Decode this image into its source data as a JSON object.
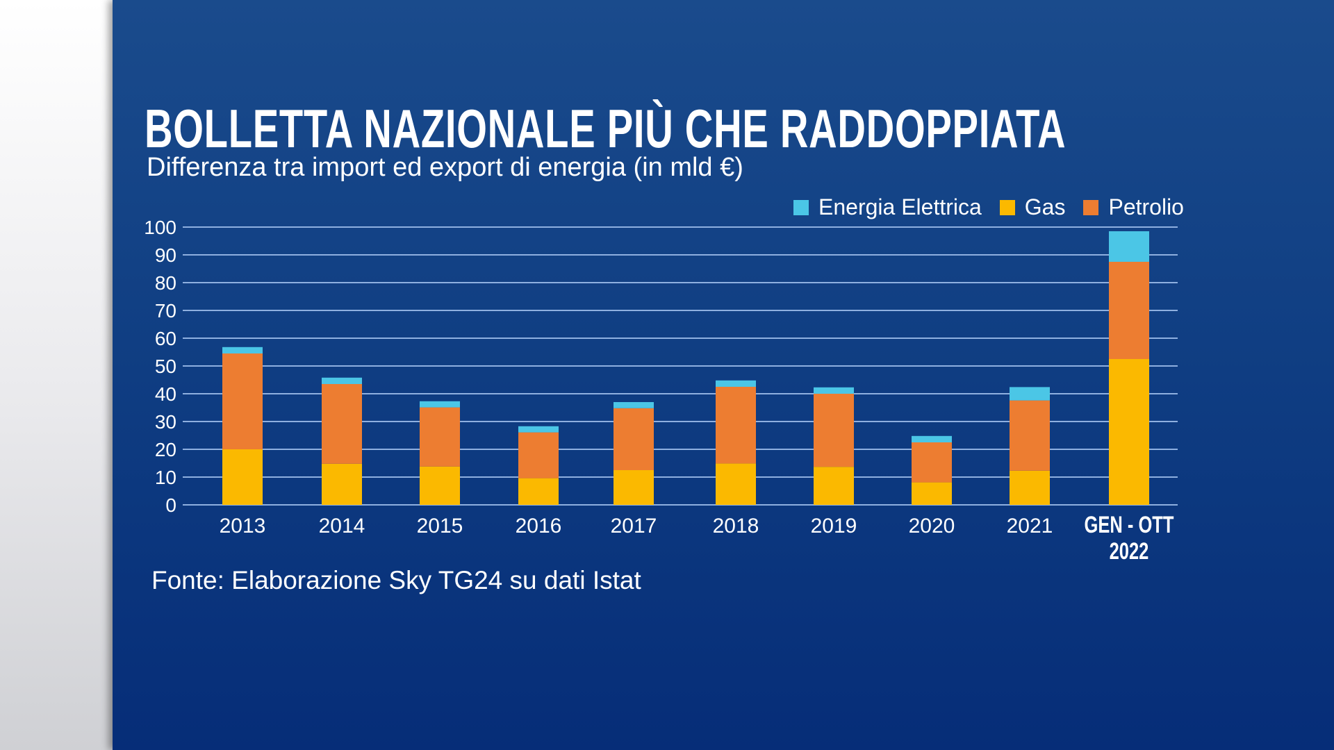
{
  "chart_data": {
    "type": "bar",
    "stacked": true,
    "title": "BOLLETTA NAZIONALE PIÙ CHE RADDOPPIATA",
    "subtitle": "Differenza tra import ed export di energia (in mld €)",
    "source": "Fonte: Elaborazione Sky TG24 su dati Istat",
    "categories": [
      "2013",
      "2014",
      "2015",
      "2016",
      "2017",
      "2018",
      "2019",
      "2020",
      "2021",
      "GEN - OTT 2022"
    ],
    "category_lines": [
      [
        "2013"
      ],
      [
        "2014"
      ],
      [
        "2015"
      ],
      [
        "2016"
      ],
      [
        "2017"
      ],
      [
        "2018"
      ],
      [
        "2019"
      ],
      [
        "2020"
      ],
      [
        "2021"
      ],
      [
        "GEN - OTT",
        "2022"
      ]
    ],
    "series": [
      {
        "name": "Gas",
        "color": "#fbb900",
        "values": [
          20,
          14.8,
          13.8,
          9.6,
          12.5,
          14.9,
          13.7,
          8.1,
          12.3,
          52.5
        ]
      },
      {
        "name": "Petrolio",
        "color": "#ed7d31",
        "values": [
          34.5,
          28.7,
          21.3,
          16.5,
          22.3,
          27.6,
          26.3,
          14.4,
          25.3,
          35
        ]
      },
      {
        "name": "Energia Elettrica",
        "color": "#4bc6e6",
        "values": [
          2.3,
          2.3,
          2.2,
          2.2,
          2.2,
          2.3,
          2.3,
          2.3,
          4.8,
          11
        ]
      }
    ],
    "legend_order": [
      "Energia Elettrica",
      "Gas",
      "Petrolio"
    ],
    "legend_placement": "top-right",
    "ylim": [
      0,
      100
    ],
    "yticks": [
      "0",
      "10",
      "20",
      "30",
      "40",
      "50",
      "60",
      "70",
      "80",
      "90",
      "100"
    ],
    "grid": true,
    "xlabel": "",
    "ylabel": ""
  }
}
